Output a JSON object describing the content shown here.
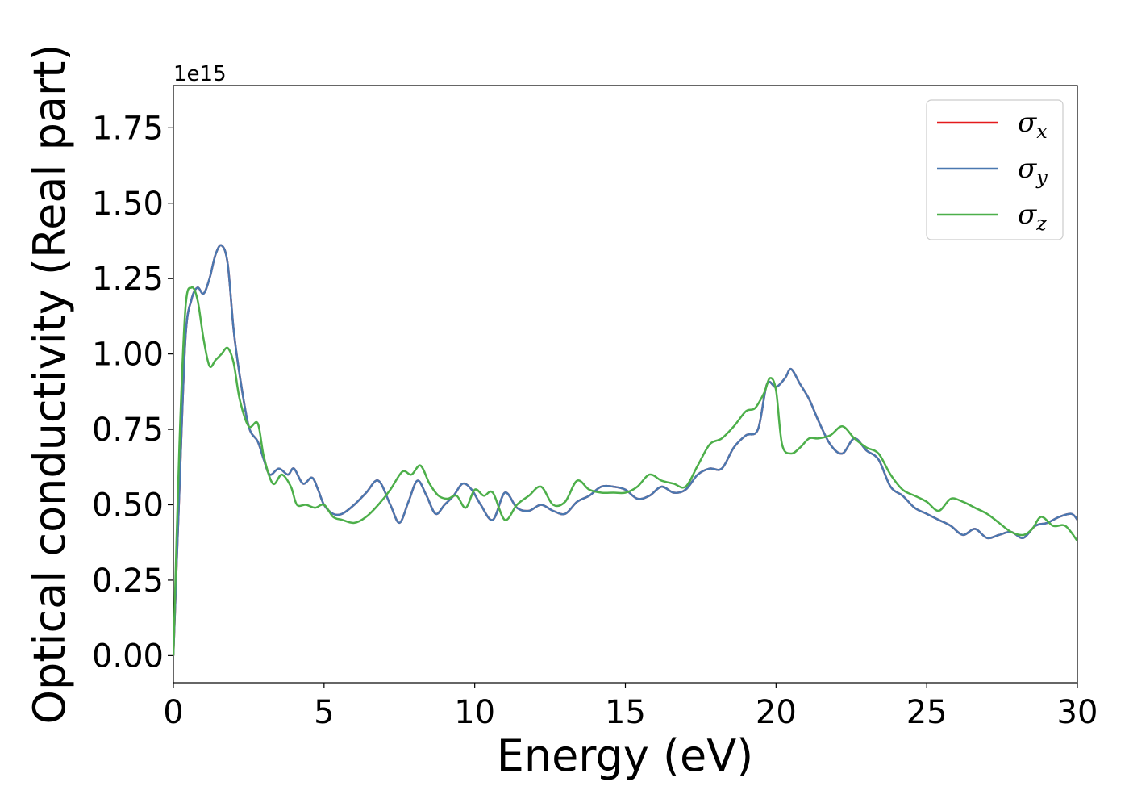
{
  "chart_data": {
    "type": "line",
    "xlabel": "Energy (eV)",
    "ylabel": "Optical conductivity (Real part)",
    "y_offset_text": "1e15",
    "xlim": [
      0,
      30
    ],
    "ylim": [
      -0.09,
      1.89
    ],
    "x_ticks": [
      0,
      5,
      10,
      15,
      20,
      25,
      30
    ],
    "x_tick_labels": [
      "0",
      "5",
      "10",
      "15",
      "20",
      "25",
      "30"
    ],
    "y_ticks": [
      0.0,
      0.25,
      0.5,
      0.75,
      1.0,
      1.25,
      1.5,
      1.75
    ],
    "y_tick_labels": [
      "0.00",
      "0.25",
      "0.50",
      "0.75",
      "1.00",
      "1.25",
      "1.50",
      "1.75"
    ],
    "grid": false,
    "legend_position": "top-right",
    "series": [
      {
        "name": "σ",
        "sub": "x",
        "color": "#e41a1c",
        "x": [
          0,
          0.2,
          0.4,
          0.6,
          0.8,
          1.0,
          1.2,
          1.4,
          1.6,
          1.8,
          2.0,
          2.2,
          2.5,
          2.8,
          3.0,
          3.2,
          3.5,
          3.8,
          4.0,
          4.3,
          4.6,
          4.8,
          5.0,
          5.3,
          5.6,
          6.0,
          6.4,
          6.8,
          7.2,
          7.5,
          7.8,
          8.1,
          8.4,
          8.7,
          9.0,
          9.3,
          9.6,
          9.9,
          10.2,
          10.6,
          11.0,
          11.4,
          11.8,
          12.2,
          12.6,
          13.0,
          13.4,
          13.8,
          14.2,
          14.6,
          15.0,
          15.4,
          15.8,
          16.2,
          16.6,
          17.0,
          17.4,
          17.8,
          18.2,
          18.6,
          19.0,
          19.4,
          19.7,
          20.0,
          20.3,
          20.5,
          20.8,
          21.1,
          21.4,
          21.8,
          22.2,
          22.6,
          23.0,
          23.4,
          23.8,
          24.2,
          24.6,
          25.0,
          25.4,
          25.8,
          26.2,
          26.6,
          27.0,
          27.4,
          27.8,
          28.2,
          28.6,
          29.0,
          29.4,
          29.8,
          30.0
        ],
        "y": [
          0.0,
          0.55,
          1.05,
          1.18,
          1.22,
          1.2,
          1.25,
          1.33,
          1.36,
          1.3,
          1.08,
          0.93,
          0.76,
          0.71,
          0.65,
          0.6,
          0.62,
          0.6,
          0.62,
          0.57,
          0.59,
          0.55,
          0.5,
          0.47,
          0.47,
          0.5,
          0.54,
          0.58,
          0.5,
          0.44,
          0.51,
          0.58,
          0.53,
          0.47,
          0.5,
          0.53,
          0.57,
          0.55,
          0.5,
          0.45,
          0.54,
          0.49,
          0.48,
          0.5,
          0.48,
          0.47,
          0.51,
          0.53,
          0.56,
          0.56,
          0.55,
          0.52,
          0.53,
          0.56,
          0.54,
          0.55,
          0.6,
          0.62,
          0.62,
          0.69,
          0.73,
          0.75,
          0.9,
          0.89,
          0.92,
          0.95,
          0.9,
          0.85,
          0.78,
          0.7,
          0.67,
          0.72,
          0.68,
          0.65,
          0.56,
          0.53,
          0.49,
          0.47,
          0.45,
          0.43,
          0.4,
          0.42,
          0.39,
          0.4,
          0.41,
          0.39,
          0.43,
          0.44,
          0.46,
          0.47,
          0.45
        ]
      },
      {
        "name": "σ",
        "sub": "y",
        "color": "#4a78b0",
        "x": [
          0,
          0.2,
          0.4,
          0.6,
          0.8,
          1.0,
          1.2,
          1.4,
          1.6,
          1.8,
          2.0,
          2.2,
          2.5,
          2.8,
          3.0,
          3.2,
          3.5,
          3.8,
          4.0,
          4.3,
          4.6,
          4.8,
          5.0,
          5.3,
          5.6,
          6.0,
          6.4,
          6.8,
          7.2,
          7.5,
          7.8,
          8.1,
          8.4,
          8.7,
          9.0,
          9.3,
          9.6,
          9.9,
          10.2,
          10.6,
          11.0,
          11.4,
          11.8,
          12.2,
          12.6,
          13.0,
          13.4,
          13.8,
          14.2,
          14.6,
          15.0,
          15.4,
          15.8,
          16.2,
          16.6,
          17.0,
          17.4,
          17.8,
          18.2,
          18.6,
          19.0,
          19.4,
          19.7,
          20.0,
          20.3,
          20.5,
          20.8,
          21.1,
          21.4,
          21.8,
          22.2,
          22.6,
          23.0,
          23.4,
          23.8,
          24.2,
          24.6,
          25.0,
          25.4,
          25.8,
          26.2,
          26.6,
          27.0,
          27.4,
          27.8,
          28.2,
          28.6,
          29.0,
          29.4,
          29.8,
          30.0
        ],
        "y": [
          0.0,
          0.55,
          1.05,
          1.18,
          1.22,
          1.2,
          1.25,
          1.33,
          1.36,
          1.3,
          1.08,
          0.93,
          0.76,
          0.71,
          0.65,
          0.6,
          0.62,
          0.6,
          0.62,
          0.57,
          0.59,
          0.55,
          0.5,
          0.47,
          0.47,
          0.5,
          0.54,
          0.58,
          0.5,
          0.44,
          0.51,
          0.58,
          0.53,
          0.47,
          0.5,
          0.53,
          0.57,
          0.55,
          0.5,
          0.45,
          0.54,
          0.49,
          0.48,
          0.5,
          0.48,
          0.47,
          0.51,
          0.53,
          0.56,
          0.56,
          0.55,
          0.52,
          0.53,
          0.56,
          0.54,
          0.55,
          0.6,
          0.62,
          0.62,
          0.69,
          0.73,
          0.75,
          0.9,
          0.89,
          0.92,
          0.95,
          0.9,
          0.85,
          0.78,
          0.7,
          0.67,
          0.72,
          0.68,
          0.65,
          0.56,
          0.53,
          0.49,
          0.47,
          0.45,
          0.43,
          0.4,
          0.42,
          0.39,
          0.4,
          0.41,
          0.39,
          0.43,
          0.44,
          0.46,
          0.47,
          0.45
        ]
      },
      {
        "name": "σ",
        "sub": "z",
        "color": "#4daf4a",
        "x": [
          0,
          0.2,
          0.4,
          0.6,
          0.8,
          1.0,
          1.2,
          1.4,
          1.6,
          1.8,
          2.0,
          2.2,
          2.5,
          2.8,
          3.0,
          3.3,
          3.6,
          3.9,
          4.1,
          4.4,
          4.7,
          5.0,
          5.3,
          5.6,
          6.0,
          6.4,
          6.8,
          7.2,
          7.6,
          7.9,
          8.2,
          8.5,
          8.8,
          9.1,
          9.4,
          9.7,
          10.0,
          10.3,
          10.6,
          11.0,
          11.4,
          11.8,
          12.2,
          12.6,
          13.0,
          13.4,
          13.8,
          14.2,
          14.6,
          15.0,
          15.4,
          15.8,
          16.2,
          16.6,
          17.0,
          17.4,
          17.8,
          18.2,
          18.6,
          19.0,
          19.3,
          19.6,
          19.8,
          20.0,
          20.2,
          20.5,
          20.8,
          21.1,
          21.4,
          21.8,
          22.2,
          22.6,
          23.0,
          23.4,
          23.8,
          24.2,
          24.6,
          25.0,
          25.4,
          25.8,
          26.2,
          26.6,
          27.0,
          27.4,
          27.8,
          28.2,
          28.5,
          28.8,
          29.2,
          29.6,
          30.0
        ],
        "y": [
          0.0,
          0.7,
          1.15,
          1.22,
          1.18,
          1.05,
          0.96,
          0.98,
          1.0,
          1.02,
          0.97,
          0.85,
          0.76,
          0.77,
          0.66,
          0.57,
          0.6,
          0.56,
          0.5,
          0.5,
          0.49,
          0.5,
          0.46,
          0.45,
          0.44,
          0.46,
          0.5,
          0.55,
          0.61,
          0.6,
          0.63,
          0.57,
          0.53,
          0.52,
          0.53,
          0.49,
          0.55,
          0.53,
          0.54,
          0.45,
          0.5,
          0.53,
          0.56,
          0.5,
          0.51,
          0.58,
          0.55,
          0.54,
          0.54,
          0.54,
          0.56,
          0.6,
          0.58,
          0.57,
          0.56,
          0.63,
          0.7,
          0.72,
          0.76,
          0.81,
          0.82,
          0.87,
          0.92,
          0.88,
          0.7,
          0.67,
          0.69,
          0.72,
          0.72,
          0.73,
          0.76,
          0.72,
          0.69,
          0.67,
          0.6,
          0.55,
          0.53,
          0.51,
          0.48,
          0.52,
          0.51,
          0.49,
          0.47,
          0.44,
          0.41,
          0.4,
          0.42,
          0.46,
          0.43,
          0.43,
          0.38
        ]
      }
    ]
  }
}
